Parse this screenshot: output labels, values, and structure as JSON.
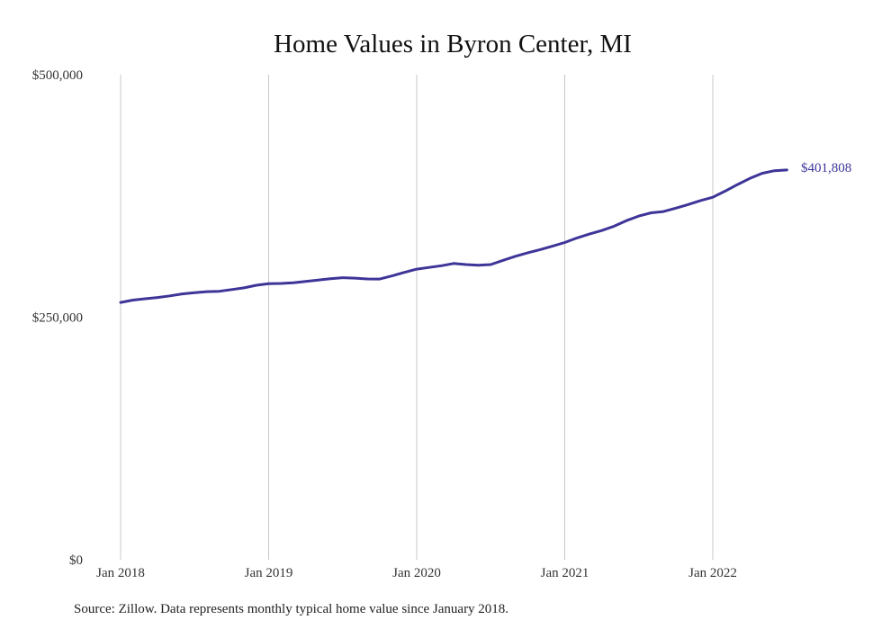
{
  "colors": {
    "line": "#3d3598",
    "grid": "#c8c8c8",
    "text": "#333333"
  },
  "chart_data": {
    "type": "line",
    "title": "Home Values in Byron Center, MI",
    "xlabel": "",
    "ylabel": "",
    "ylim": [
      0,
      500000
    ],
    "y_ticks": [
      {
        "value": 0,
        "label": "$0"
      },
      {
        "value": 250000,
        "label": "$250,000"
      },
      {
        "value": 500000,
        "label": "$500,000"
      }
    ],
    "x_ticks": [
      {
        "value": "2018-01",
        "label": "Jan 2018"
      },
      {
        "value": "2019-01",
        "label": "Jan 2019"
      },
      {
        "value": "2020-01",
        "label": "Jan 2020"
      },
      {
        "value": "2021-01",
        "label": "Jan 2021"
      },
      {
        "value": "2022-01",
        "label": "Jan 2022"
      }
    ],
    "grid": "vertical",
    "end_label": "$401,808",
    "series": [
      {
        "name": "",
        "x": [
          "2018-01",
          "2018-02",
          "2018-03",
          "2018-04",
          "2018-05",
          "2018-06",
          "2018-07",
          "2018-08",
          "2018-09",
          "2018-10",
          "2018-11",
          "2018-12",
          "2019-01",
          "2019-02",
          "2019-03",
          "2019-04",
          "2019-05",
          "2019-06",
          "2019-07",
          "2019-08",
          "2019-09",
          "2019-10",
          "2019-11",
          "2019-12",
          "2020-01",
          "2020-02",
          "2020-03",
          "2020-04",
          "2020-05",
          "2020-06",
          "2020-07",
          "2020-08",
          "2020-09",
          "2020-10",
          "2020-11",
          "2020-12",
          "2021-01",
          "2021-02",
          "2021-03",
          "2021-04",
          "2021-05",
          "2021-06",
          "2021-07",
          "2021-08",
          "2021-09",
          "2021-10",
          "2021-11",
          "2021-12",
          "2022-01",
          "2022-02",
          "2022-03",
          "2022-04",
          "2022-05",
          "2022-06",
          "2022-07"
        ],
        "values": [
          265200,
          267600,
          269000,
          270300,
          272000,
          274000,
          275300,
          276300,
          276700,
          278500,
          280200,
          282900,
          284500,
          284800,
          285500,
          286800,
          288300,
          289700,
          290700,
          290300,
          289400,
          289300,
          292600,
          296200,
          299500,
          301300,
          303100,
          305400,
          304300,
          303500,
          304300,
          308600,
          312800,
          316400,
          319700,
          323200,
          327000,
          331700,
          335700,
          339300,
          343800,
          349500,
          354300,
          357600,
          358900,
          362400,
          366100,
          370200,
          373700,
          380000,
          386700,
          393000,
          398300,
          401000,
          401808
        ]
      }
    ]
  },
  "footer": {
    "source": "Source: Zillow. Data represents monthly typical home value since January 2018."
  }
}
